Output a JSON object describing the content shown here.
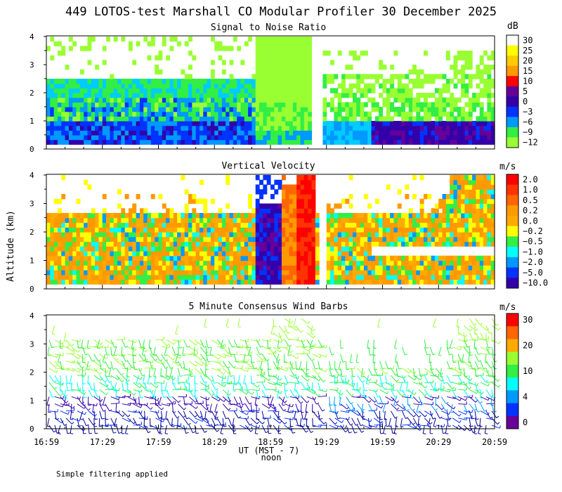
{
  "title": "449 LOTOS-test Marshall CO Modular Profiler 30 December 2025",
  "footnote": "Simple filtering applied",
  "y_label": "Altitude (km)",
  "x_axis": {
    "label": "UT (MST - 7)",
    "sublabel": "noon",
    "ticks": [
      "16:59",
      "17:29",
      "17:59",
      "18:29",
      "18:59",
      "19:29",
      "19:59",
      "20:29",
      "20:59"
    ]
  },
  "colors": {
    "white": "#ffffff",
    "yellow": "#ffff00",
    "gold": "#ffcc00",
    "orange": "#ff9900",
    "darkorange": "#ff6600",
    "red": "#ff0000",
    "purple": "#660099",
    "indigo": "#3300aa",
    "blue": "#0033ff",
    "azure": "#0099ff",
    "skyblue": "#00ccff",
    "cyan": "#00ffff",
    "green": "#33ee44",
    "lime": "#99ff33",
    "deepred": "#ff3300",
    "amber": "#ffaa00",
    "dark": "#330033",
    "navy": "#000099"
  },
  "chart_data": [
    {
      "type": "heatmap",
      "title": "Signal to Noise Ratio",
      "unit": "dB",
      "ylim": [
        0,
        4
      ],
      "yticks": [
        "0",
        "1",
        "2",
        "3",
        "4"
      ],
      "colorbar": [
        {
          "label": "30",
          "color": "white"
        },
        {
          "label": "25",
          "color": "yellow"
        },
        {
          "label": "20",
          "color": "gold"
        },
        {
          "label": "15",
          "color": "orange"
        },
        {
          "label": "10",
          "color": "red"
        },
        {
          "label": "5",
          "color": "purple"
        },
        {
          "label": "0",
          "color": "indigo"
        },
        {
          "label": "−3",
          "color": "blue"
        },
        {
          "label": "−6",
          "color": "azure"
        },
        {
          "label": "−9",
          "color": "green"
        },
        {
          "label": "−12",
          "color": "lime"
        }
      ]
    },
    {
      "type": "heatmap",
      "title": "Vertical Velocity",
      "unit": "m/s",
      "ylim": [
        0,
        4
      ],
      "yticks": [
        "0",
        "1",
        "2",
        "3",
        "4"
      ],
      "colorbar": [
        {
          "label": "2.0",
          "color": "red"
        },
        {
          "label": "1.0",
          "color": "deepred"
        },
        {
          "label": "0.5",
          "color": "darkorange"
        },
        {
          "label": "0.2",
          "color": "orange"
        },
        {
          "label": "0.0",
          "color": "amber"
        },
        {
          "label": "−0.2",
          "color": "yellow"
        },
        {
          "label": "−0.5",
          "color": "green"
        },
        {
          "label": "−1.0",
          "color": "cyan"
        },
        {
          "label": "−2.0",
          "color": "azure"
        },
        {
          "label": "−5.0",
          "color": "blue"
        },
        {
          "label": "−10.0",
          "color": "indigo"
        }
      ]
    },
    {
      "type": "scatter",
      "title": "5 Minute Consensus Wind Barbs",
      "unit": "m/s",
      "ylim": [
        0,
        4
      ],
      "yticks": [
        "0",
        "1",
        "2",
        "3",
        "4"
      ],
      "colorbar": [
        {
          "label": "30",
          "color": "red"
        },
        {
          "label": "",
          "color": "darkorange"
        },
        {
          "label": "20",
          "color": "amber"
        },
        {
          "label": "",
          "color": "lime"
        },
        {
          "label": "10",
          "color": "green"
        },
        {
          "label": "",
          "color": "cyan"
        },
        {
          "label": "4",
          "color": "azure"
        },
        {
          "label": "",
          "color": "blue"
        },
        {
          "label": "0",
          "color": "purple"
        }
      ]
    }
  ]
}
